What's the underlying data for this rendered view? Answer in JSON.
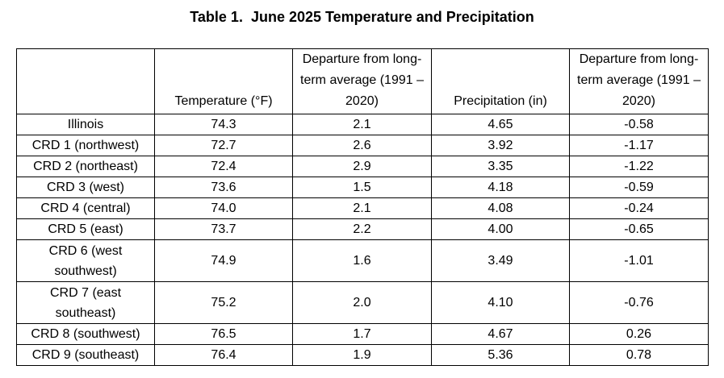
{
  "title": "Table 1.  June 2025 Temperature and Precipitation",
  "table": {
    "headers": [
      "",
      "Temperature (°F)",
      "Departure from long-term average (1991 – 2020)",
      "Precipitation (in)",
      "Departure from long-term average (1991 – 2020)"
    ],
    "rows": [
      [
        "Illinois",
        "74.3",
        "2.1",
        "4.65",
        "-0.58"
      ],
      [
        "CRD 1 (northwest)",
        "72.7",
        "2.6",
        "3.92",
        "-1.17"
      ],
      [
        "CRD 2 (northeast)",
        "72.4",
        "2.9",
        "3.35",
        "-1.22"
      ],
      [
        "CRD 3 (west)",
        "73.6",
        "1.5",
        "4.18",
        "-0.59"
      ],
      [
        "CRD 4 (central)",
        "74.0",
        "2.1",
        "4.08",
        "-0.24"
      ],
      [
        "CRD 5 (east)",
        "73.7",
        "2.2",
        "4.00",
        "-0.65"
      ],
      [
        "CRD 6 (west southwest)",
        "74.9",
        "1.6",
        "3.49",
        "-1.01"
      ],
      [
        "CRD 7 (east southeast)",
        "75.2",
        "2.0",
        "4.10",
        "-0.76"
      ],
      [
        "CRD 8 (southwest)",
        "76.5",
        "1.7",
        "4.67",
        "0.26"
      ],
      [
        "CRD 9 (southeast)",
        "76.4",
        "1.9",
        "5.36",
        "0.78"
      ]
    ]
  }
}
